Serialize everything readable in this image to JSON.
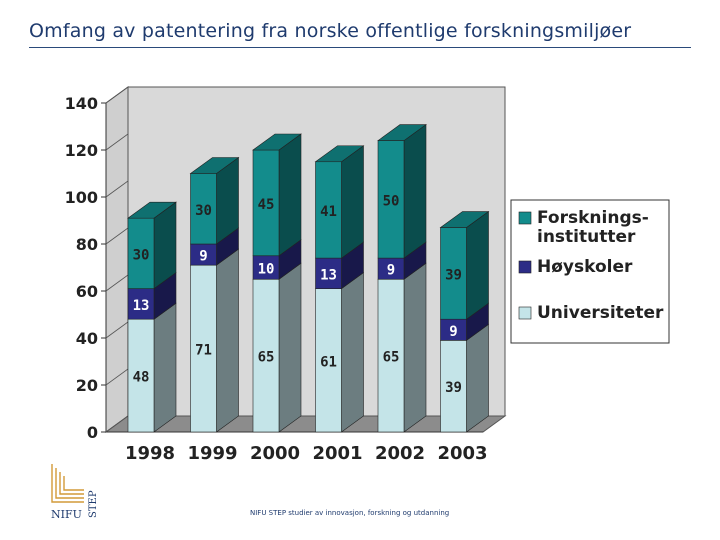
{
  "slide": {
    "title": "Omfang av patentering fra norske offentlige forskningsmiljøer",
    "footer": "NIFU STEP studier av innovasjon, forskning og utdanning",
    "logo_text": "NIFU STEP"
  },
  "colors": {
    "universiteter": "#c4e4e8",
    "hoyskoler": "#2c2c86",
    "forskningsinstitutter": "#138c8c",
    "wall": "#d9d9d9",
    "floor": "#8c8c8c",
    "title": "#1f3b6e",
    "logo": "#d29a38"
  },
  "chart_data": {
    "type": "bar",
    "stacked": true,
    "three_d": true,
    "categories": [
      "1998",
      "1999",
      "2000",
      "2001",
      "2002",
      "2003"
    ],
    "series": [
      {
        "name": "Universiteter",
        "values": [
          48,
          71,
          65,
          61,
          65,
          39
        ],
        "labels": [
          "48",
          "71",
          "65",
          "61",
          "65",
          "39"
        ]
      },
      {
        "name": "Høyskoler",
        "values": [
          13,
          9,
          10,
          13,
          9,
          9
        ],
        "labels": [
          "13",
          "9",
          "10",
          "13",
          "9",
          "9"
        ]
      },
      {
        "name": "Forskningsinstitutter",
        "values": [
          30,
          30,
          45,
          41,
          50,
          39
        ],
        "labels": [
          "30",
          "30",
          "45",
          "41",
          "50",
          "39"
        ]
      }
    ],
    "ylim": [
      0,
      140
    ],
    "yticks": [
      "0",
      "20",
      "40",
      "60",
      "80",
      "100",
      "120",
      "140"
    ],
    "legend": [
      "Forsknings-\ninstitutter",
      "Høyskoler",
      "Universiteter"
    ],
    "legend_position": "right",
    "grid": false
  }
}
